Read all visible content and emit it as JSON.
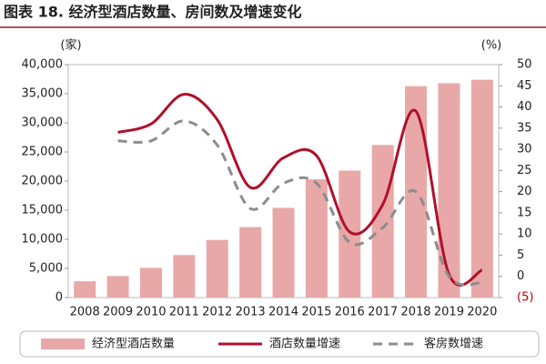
{
  "chart_data": {
    "type": "bar",
    "title": "图表 18. 经济型酒店数量、房间数及增速变化",
    "y_label": "(家)",
    "y2_label": "(%)",
    "categories": [
      "2008",
      "2009",
      "2010",
      "2011",
      "2012",
      "2013",
      "2014",
      "2015",
      "2016",
      "2017",
      "2018",
      "2019",
      "2020"
    ],
    "series": [
      {
        "name": "经济型酒店数量",
        "type": "bar",
        "color": "#e8a8a8",
        "values": [
          2800,
          3700,
          5100,
          7300,
          9900,
          12100,
          15400,
          20300,
          21800,
          26200,
          36300,
          36800,
          37400
        ]
      },
      {
        "name": "酒店数量增速",
        "type": "line",
        "axis": "y2",
        "color": "#b0102a",
        "linestyle": "solid",
        "values": [
          null,
          34,
          36,
          43,
          37,
          21,
          28,
          28.5,
          10.5,
          17,
          39,
          0.5,
          1.5
        ]
      },
      {
        "name": "客房数增速",
        "type": "line",
        "axis": "y2",
        "color": "#8c8c8c",
        "linestyle": "dashed",
        "values": [
          null,
          32,
          32,
          36.7,
          31,
          16,
          22,
          22,
          8,
          11.5,
          20,
          0,
          -1.5
        ]
      }
    ],
    "ylim": [
      0,
      40000
    ],
    "yticks": [
      0,
      {
        "value": 5000,
        "label": "5,000"
      },
      {
        "value": 10000,
        "label": "10,000"
      },
      {
        "value": 15000,
        "label": "15,000"
      },
      {
        "value": 20000,
        "label": "20,000"
      },
      {
        "value": 25000,
        "label": "25,000"
      },
      {
        "value": 30000,
        "label": "30,000"
      },
      {
        "value": 35000,
        "label": "35,000"
      },
      {
        "value": 40000,
        "label": "40,000"
      }
    ],
    "y2lim": [
      -5,
      50
    ],
    "y2ticks": [
      {
        "value": -5,
        "label": "(5)"
      },
      0,
      5,
      10,
      15,
      20,
      25,
      30,
      35,
      40,
      45,
      50
    ],
    "grid": false
  }
}
